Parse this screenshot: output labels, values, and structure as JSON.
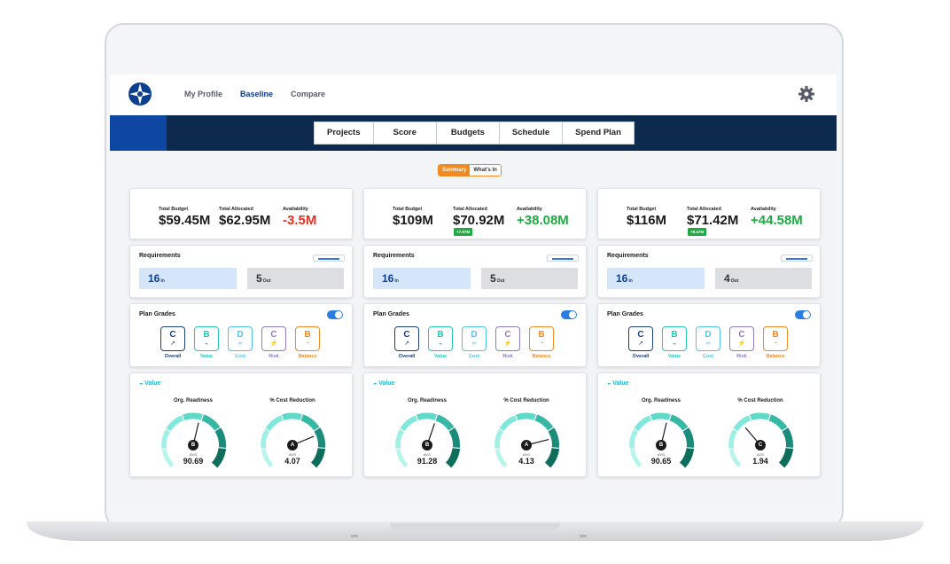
{
  "nav": {
    "links": [
      "My Profile",
      "Baseline",
      "Compare"
    ],
    "active": "Baseline"
  },
  "tabs": [
    "Projects",
    "Score",
    "Budgets",
    "Schedule",
    "Spend Plan"
  ],
  "view_toggle": {
    "summary": "Summary",
    "whats_in": "What's In"
  },
  "labels": {
    "total_budget": "Total Budget",
    "total_allocated": "Total Allocated",
    "availability": "Availability",
    "requirements": "Requirements",
    "plan_grades": "Plan Grades",
    "value": "Value",
    "org_readiness": "Org. Readiness",
    "cost_reduction": "% Cost Reduction",
    "avg": "AVG",
    "in": "In",
    "out": "Out"
  },
  "grade_names": [
    "Overall",
    "Value",
    "Cost",
    "Risk",
    "Balance"
  ],
  "colors": {
    "navy": "#0c2a4d",
    "brand_blue": "#0d47a1",
    "orange": "#f08a24",
    "overall": "#1a3f7a",
    "value": "#26c6b5",
    "cost": "#4fc3e6",
    "risk": "#8e7cc3",
    "balance": "#f08a24",
    "negative": "#e53020",
    "positive": "#1faa44"
  },
  "columns": [
    {
      "total_budget": "$59.45M",
      "total_allocated": "$62.95M",
      "availability": "-3.5M",
      "availability_positive": false,
      "allocated_chip": "",
      "req_in": "16",
      "req_out": "5",
      "grades": [
        "C",
        "B",
        "D",
        "C",
        "B"
      ],
      "org_readiness": {
        "letter": "B",
        "avg": "90.69",
        "fraction": 0.55
      },
      "cost_reduction": {
        "letter": "A",
        "avg": "4.07",
        "fraction": 0.75
      }
    },
    {
      "total_budget": "$109M",
      "total_allocated": "$70.92M",
      "availability": "+38.08M",
      "availability_positive": true,
      "allocated_chip": "+7.97M",
      "req_in": "16",
      "req_out": "5",
      "grades": [
        "C",
        "B",
        "D",
        "C",
        "B"
      ],
      "org_readiness": {
        "letter": "B",
        "avg": "91.28",
        "fraction": 0.57
      },
      "cost_reduction": {
        "letter": "A",
        "avg": "4.13",
        "fraction": 0.78
      }
    },
    {
      "total_budget": "$116M",
      "total_allocated": "$71.42M",
      "availability": "+44.58M",
      "availability_positive": true,
      "allocated_chip": "+8.47M",
      "req_in": "16",
      "req_out": "4",
      "grades": [
        "C",
        "B",
        "D",
        "C",
        "B"
      ],
      "org_readiness": {
        "letter": "B",
        "avg": "90.65",
        "fraction": 0.55
      },
      "cost_reduction": {
        "letter": "C",
        "avg": "1.94",
        "fraction": 0.35
      }
    }
  ]
}
